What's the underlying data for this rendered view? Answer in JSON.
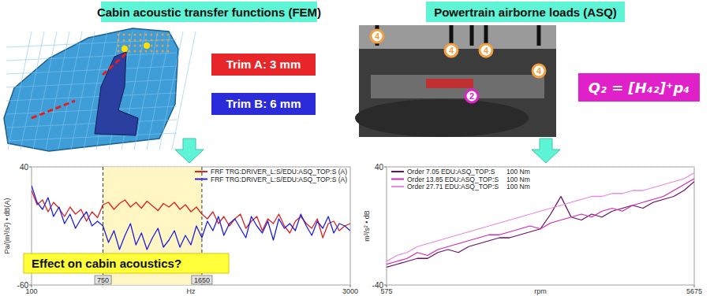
{
  "headers": [
    "Cabin acoustic transfer functions (FEM)",
    "Powertrain airborne loads (ASQ)"
  ],
  "trims": [
    {
      "label": "Trim A: 3 mm",
      "color": "#e8262a"
    },
    {
      "label": "Trim B: 6 mm",
      "color": "#2b2bd9"
    }
  ],
  "sensor_labels": [
    "4",
    "4",
    "4",
    "4",
    "2"
  ],
  "formula": "Q₂ = [H₄₂]⁺p₄",
  "callout": "Effect on cabin acoustics?",
  "chart_data": [
    {
      "type": "line",
      "xlabel": "Hz",
      "ylabel": "Pa/(m³/s²) • dB(A)",
      "x": [
        100,
        150,
        200,
        250,
        300,
        350,
        400,
        450,
        500,
        550,
        600,
        650,
        700,
        750,
        800,
        850,
        900,
        950,
        1000,
        1050,
        1100,
        1150,
        1200,
        1250,
        1300,
        1350,
        1400,
        1450,
        1500,
        1550,
        1600,
        1650,
        1700,
        1750,
        1800,
        1850,
        1900,
        1950,
        2000,
        2050,
        2100,
        2150,
        2200,
        2250,
        2300,
        2350,
        2400,
        2450,
        2500,
        2550,
        2600,
        2650,
        2700,
        2750,
        2800,
        2850,
        2900,
        2950,
        3000
      ],
      "xlim": [
        100,
        3000
      ],
      "ylim": [
        -60,
        40
      ],
      "xticks": [
        100,
        3000
      ],
      "yticks": [
        -60,
        40
      ],
      "grid": true,
      "legend": "upper right",
      "cursors": [
        750,
        1650
      ],
      "series": [
        {
          "name": "FRF TRG:DRIVER_L:S/EDU:ASQ_TOP:S (A)",
          "color": "#e02020",
          "values": [
            20,
            8,
            12,
            2,
            10,
            5,
            -2,
            6,
            0,
            4,
            -6,
            2,
            -3,
            8,
            10,
            4,
            9,
            12,
            6,
            10,
            5,
            11,
            7,
            3,
            9,
            6,
            10,
            4,
            8,
            2,
            6,
            0,
            -4,
            2,
            -8,
            -2,
            -10,
            -4,
            0,
            -12,
            -6,
            -2,
            -14,
            -4,
            -8,
            0,
            -10,
            -16,
            -6,
            -2,
            -8,
            -12,
            -4,
            -20,
            -8,
            -6,
            -14,
            -10,
            -8
          ]
        },
        {
          "name": "FRF TRG:DRIVER_L:S/EDU:ASQ_TOP:S (A)",
          "color": "#2020e0",
          "values": [
            24,
            10,
            4,
            14,
            -2,
            6,
            -8,
            0,
            -12,
            -4,
            2,
            -10,
            -6,
            -10,
            -24,
            -14,
            -30,
            -18,
            -8,
            -26,
            -16,
            -30,
            -20,
            -12,
            -28,
            -22,
            -14,
            -28,
            -18,
            -26,
            -10,
            -20,
            -6,
            -14,
            -2,
            -18,
            -8,
            -4,
            -12,
            -20,
            -2,
            -10,
            -16,
            -6,
            -22,
            -4,
            -12,
            -8,
            -14,
            0,
            -10,
            -18,
            -6,
            -12,
            -2,
            -16,
            -8,
            -10,
            -14
          ]
        }
      ]
    },
    {
      "type": "line",
      "xlabel": "rpm",
      "ylabel": "m³/s² • dB",
      "x": [
        575,
        745,
        915,
        1085,
        1255,
        1425,
        1595,
        1765,
        1935,
        2105,
        2275,
        2445,
        2615,
        2785,
        2955,
        3125,
        3295,
        3465,
        3635,
        3805,
        3975,
        4145,
        4315,
        4485,
        4655,
        4825,
        4995,
        5165,
        5335,
        5505,
        5675
      ],
      "xlim": [
        575,
        5675
      ],
      "ylim": [
        -40,
        40
      ],
      "xticks": [
        575,
        5675
      ],
      "yticks": [
        -40,
        40
      ],
      "grid": true,
      "legend": "upper left",
      "series": [
        {
          "name": "Order 7.05 EDU:ASQ_TOP:S",
          "load": "100 Nm",
          "color": "#6b0f6b",
          "values": [
            -28,
            -26,
            -24,
            -22,
            -22,
            -18,
            -16,
            -18,
            -14,
            -12,
            -10,
            -8,
            -8,
            -6,
            -4,
            -2,
            8,
            20,
            6,
            4,
            8,
            6,
            10,
            12,
            14,
            12,
            16,
            18,
            20,
            24,
            30
          ]
        },
        {
          "name": "Order 13.85 EDU:ASQ_TOP:S",
          "load": "100 Nm",
          "color": "#d428b4",
          "values": [
            -26,
            -24,
            -22,
            -18,
            -20,
            -16,
            -14,
            -12,
            -10,
            -8,
            -6,
            -6,
            -4,
            -2,
            0,
            -2,
            2,
            4,
            6,
            8,
            6,
            10,
            12,
            10,
            14,
            16,
            18,
            20,
            24,
            28,
            32
          ]
        },
        {
          "name": "Order 27.71 EDU:ASQ_TOP:S",
          "load": "100 Nm",
          "color": "#e88ae0",
          "values": [
            -24,
            -20,
            -18,
            -14,
            -12,
            -10,
            -8,
            -6,
            -4,
            -2,
            0,
            2,
            4,
            6,
            8,
            10,
            12,
            14,
            16,
            18,
            20,
            20,
            22,
            22,
            24,
            24,
            26,
            28,
            30,
            32,
            36
          ]
        }
      ]
    }
  ]
}
